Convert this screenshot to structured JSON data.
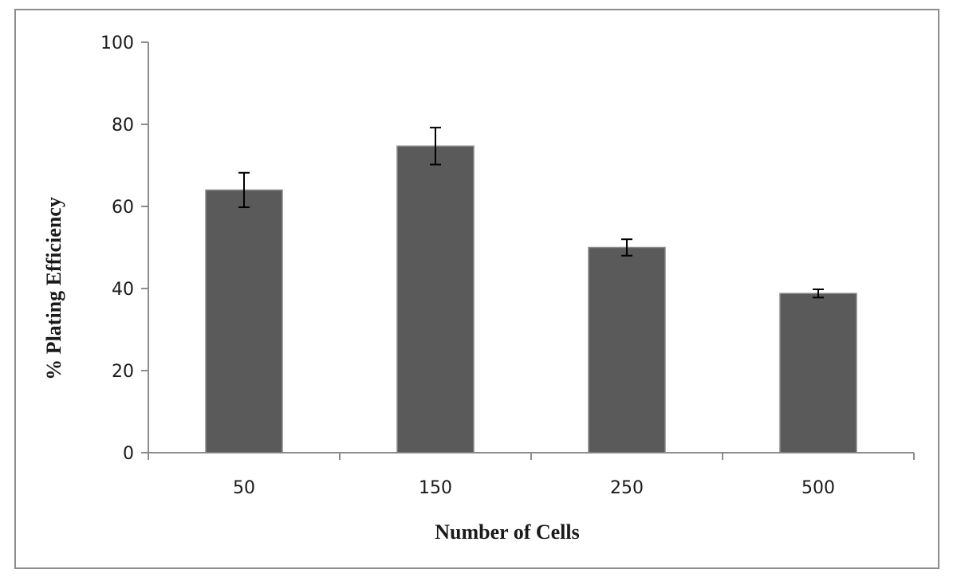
{
  "chart_data": {
    "type": "bar",
    "title": "",
    "xlabel": "Number of Cells",
    "ylabel": "% Plating Efficiency",
    "categories": [
      "50",
      "150",
      "250",
      "500"
    ],
    "series": [
      {
        "values": [
          64,
          74.7,
          50,
          38.8
        ],
        "errors": [
          4.2,
          4.5,
          2,
          1
        ]
      }
    ],
    "ylim": [
      0,
      100
    ],
    "yticks": [
      0,
      20,
      40,
      60,
      80,
      100
    ],
    "grid": false,
    "legend": "none",
    "colors": {
      "bar": "#5a5a5a",
      "bar_edge": "#8a8a8a",
      "axis": "#8c8c8c",
      "error_bar": "#000000"
    }
  }
}
